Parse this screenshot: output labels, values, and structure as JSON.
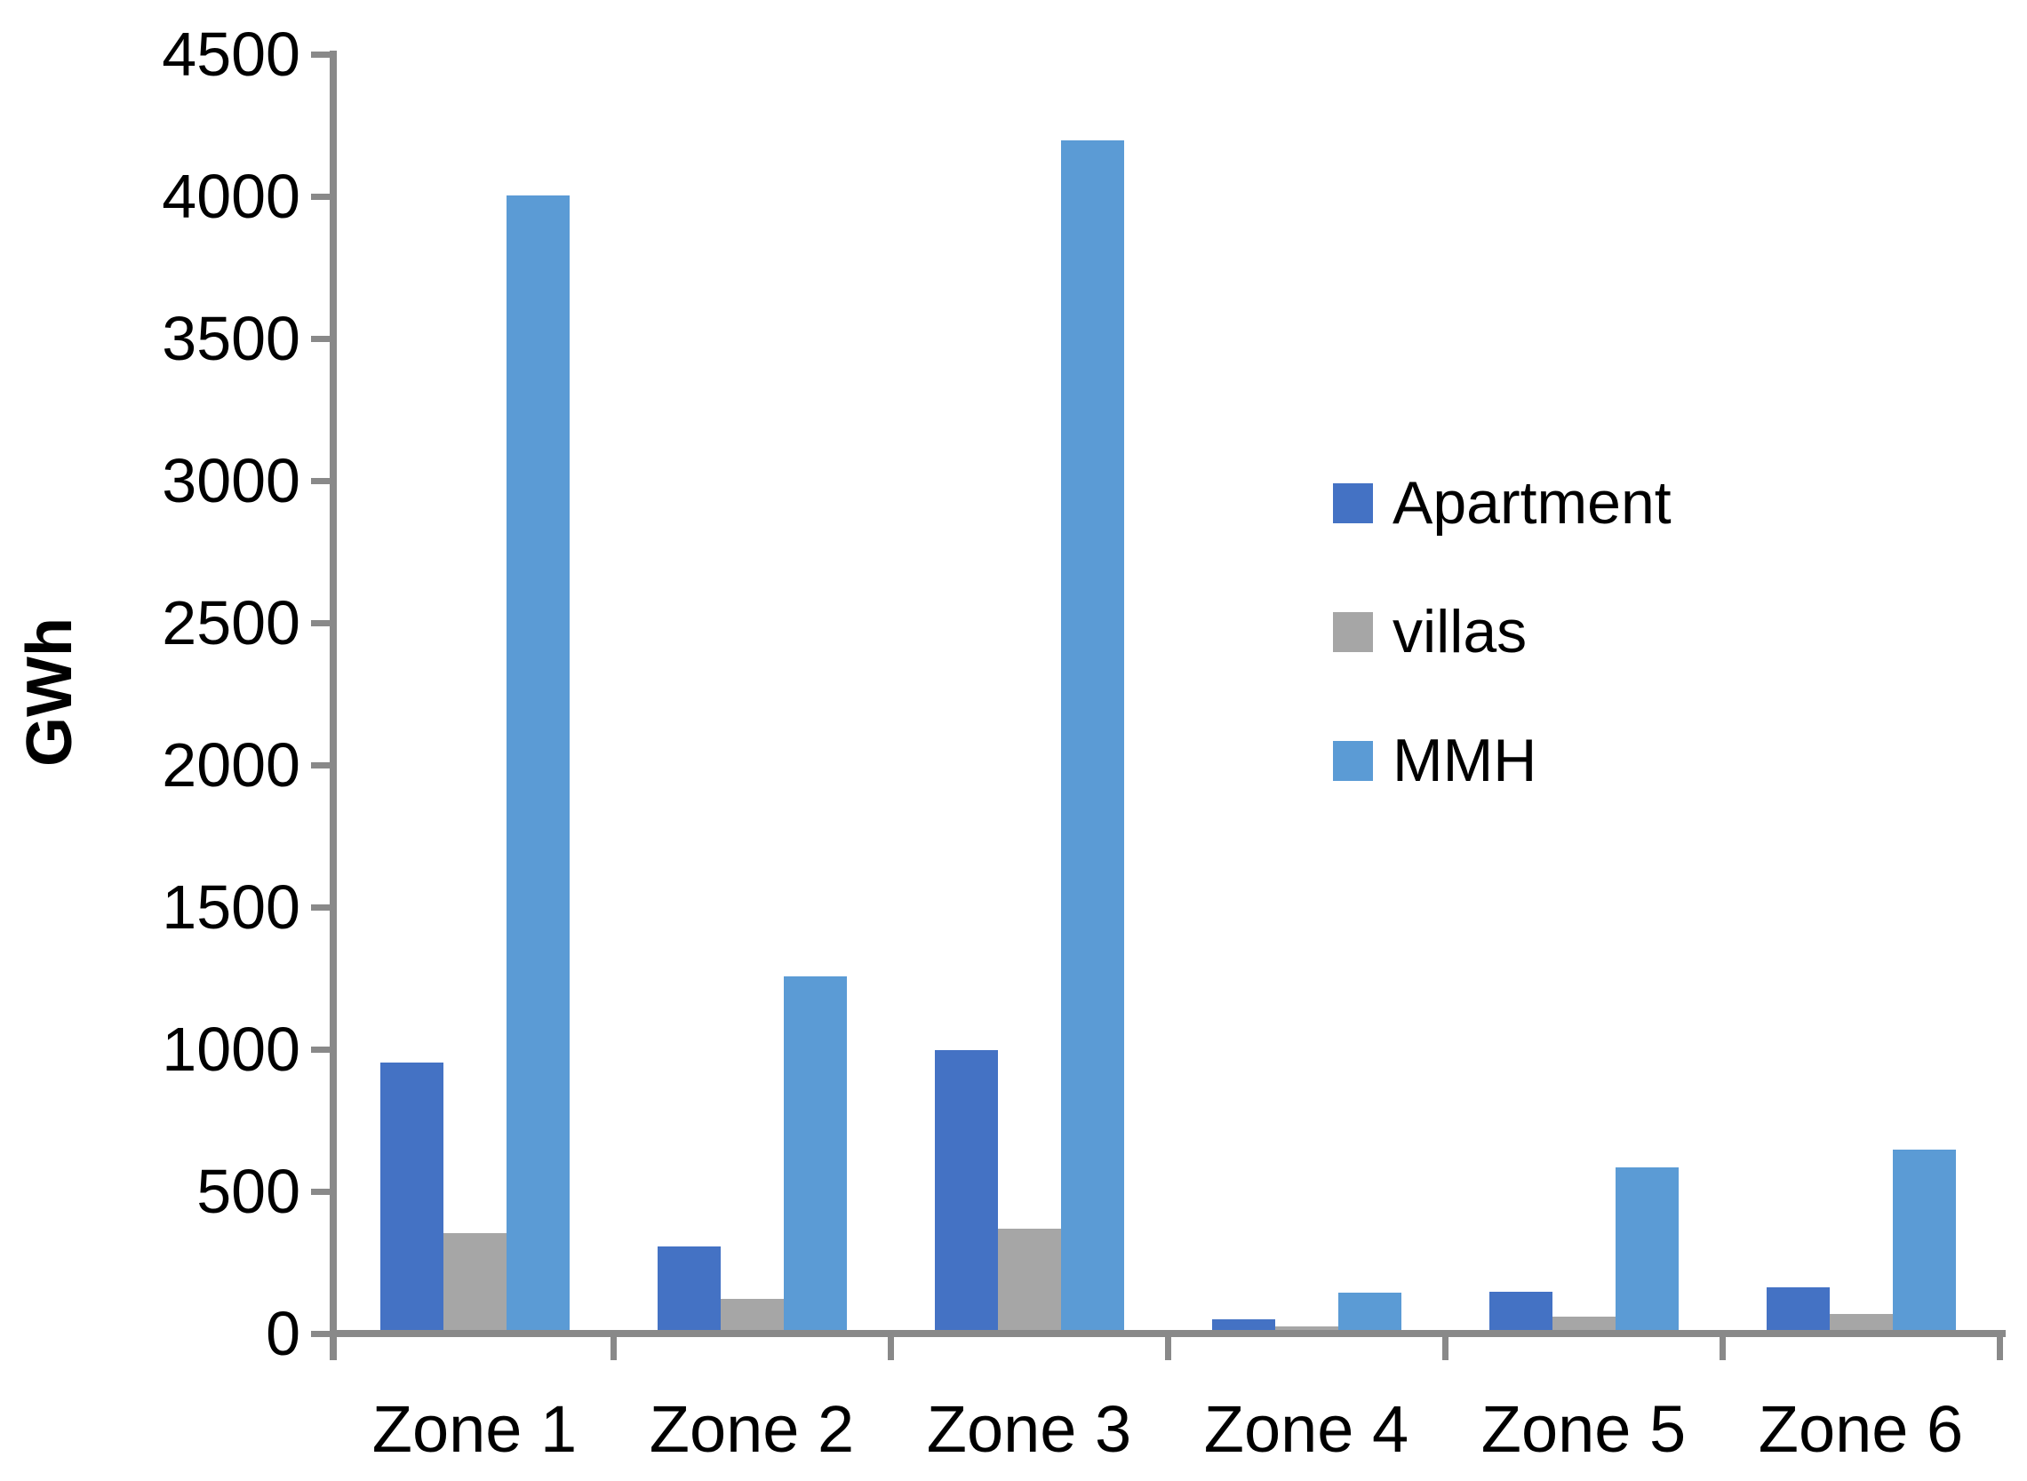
{
  "chart_data": {
    "type": "bar",
    "title": "",
    "ylabel": "GWh",
    "xlabel": "",
    "categories": [
      "Zone 1",
      "Zone 2",
      "Zone 3",
      "Zone 4",
      "Zone 5",
      "Zone 6"
    ],
    "series": [
      {
        "name": "Apartment",
        "color": "#4472C4",
        "values": [
          940,
          295,
          985,
          37,
          135,
          150
        ]
      },
      {
        "name": "villas",
        "color": "#A6A6A6",
        "values": [
          340,
          110,
          355,
          12,
          47,
          55
        ]
      },
      {
        "name": "MMH",
        "color": "#5B9BD5",
        "values": [
          3990,
          1245,
          4185,
          130,
          572,
          635
        ]
      }
    ],
    "ylim": [
      0,
      4500
    ],
    "ytick_step": 500,
    "yticks": [
      0,
      500,
      1000,
      1500,
      2000,
      2500,
      3000,
      3500,
      4000,
      4500
    ],
    "grid": false,
    "legend_position": "center-right",
    "axis_color": "#898989",
    "text_color": "#000000",
    "background": "#FFFFFF"
  }
}
